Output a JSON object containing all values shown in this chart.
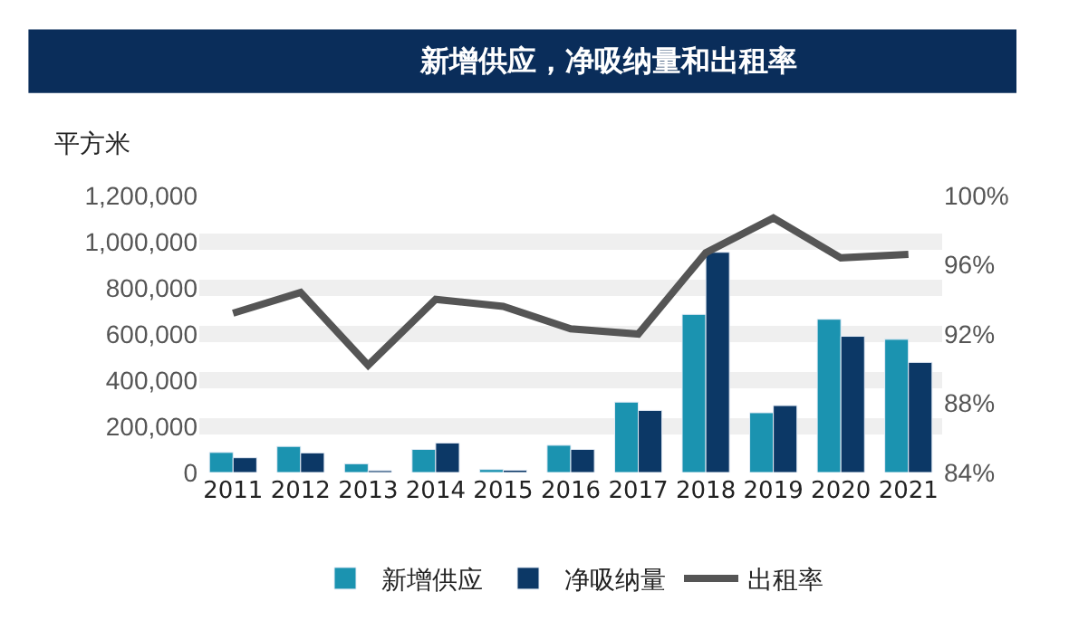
{
  "chart_data": {
    "type": "bar",
    "title": "新增供应，净吸纳量和出租率",
    "ylabel": "平方米",
    "categories": [
      "2011",
      "2012",
      "2013",
      "2014",
      "2015",
      "2016",
      "2017",
      "2018",
      "2019",
      "2020",
      "2021"
    ],
    "series": [
      {
        "name": "新增供应",
        "color": "#1b93b0",
        "values": [
          87000,
          113000,
          38000,
          100000,
          13000,
          118000,
          305000,
          685000,
          259000,
          664000,
          577000
        ]
      },
      {
        "name": "净吸纳量",
        "color": "#0c3866",
        "values": [
          64000,
          85000,
          8000,
          128000,
          10000,
          100000,
          269000,
          954000,
          290000,
          590000,
          477000
        ]
      },
      {
        "name": "出租率",
        "type": "line",
        "axis": "y2",
        "color": "#555555",
        "values": [
          93.2,
          94.4,
          90.2,
          94.0,
          93.6,
          92.3,
          92.0,
          96.7,
          98.7,
          96.4,
          96.6
        ]
      }
    ],
    "ylim": [
      0,
      1200000
    ],
    "yticks": [
      {
        "value": 0,
        "label": "0"
      },
      {
        "value": 200000,
        "label": "200,000"
      },
      {
        "value": 400000,
        "label": "400,000"
      },
      {
        "value": 600000,
        "label": "600,000"
      },
      {
        "value": 800000,
        "label": "800,000"
      },
      {
        "value": 1000000,
        "label": "1,000,000"
      },
      {
        "value": 1200000,
        "label": "1,200,000"
      }
    ],
    "y2lim": [
      84,
      100
    ],
    "y2ticks": [
      {
        "value": 84,
        "label": "84%"
      },
      {
        "value": 88,
        "label": "88%"
      },
      {
        "value": 92,
        "label": "92%"
      },
      {
        "value": 96,
        "label": "96%"
      },
      {
        "value": 100,
        "label": "100%"
      }
    ],
    "grid": "y",
    "legend": "bottom",
    "marker": "none",
    "line_style": "solid"
  }
}
